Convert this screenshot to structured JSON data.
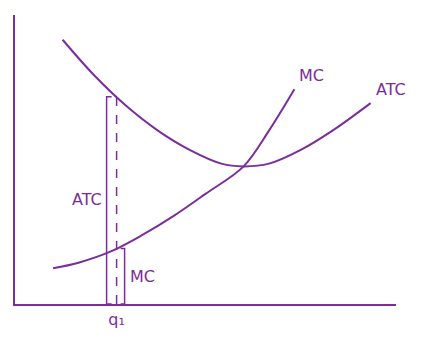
{
  "chart_data": {
    "type": "line",
    "series": [
      {
        "name": "MC",
        "color": "#7b2d9e",
        "x": [
          1.2,
          2,
          3,
          4,
          5,
          6,
          7.2,
          8,
          8.8
        ],
        "values": [
          1.3,
          1.5,
          1.9,
          2.5,
          3.2,
          4.0,
          5.0,
          6.3,
          7.8
        ]
      },
      {
        "name": "ATC",
        "color": "#7b2d9e",
        "x": [
          1.5,
          2.5,
          3.5,
          4.5,
          5.5,
          6.5,
          7.2,
          8,
          9,
          10,
          11.2
        ],
        "values": [
          9.6,
          8.3,
          7.2,
          6.3,
          5.6,
          5.1,
          5.0,
          5.1,
          5.6,
          6.3,
          7.3
        ]
      }
    ],
    "xlim": [
      0,
      12
    ],
    "ylim": [
      0,
      10.5
    ],
    "xticks": [
      {
        "value": 3.2,
        "label": "q₁"
      }
    ],
    "yticks": [],
    "tick_labels": "x",
    "grid": false,
    "annotations": [
      {
        "text": "ATC",
        "x": 3.2,
        "y": 3.8
      },
      {
        "text": "MC",
        "x": 3.2,
        "y": 1.0
      }
    ]
  }
}
